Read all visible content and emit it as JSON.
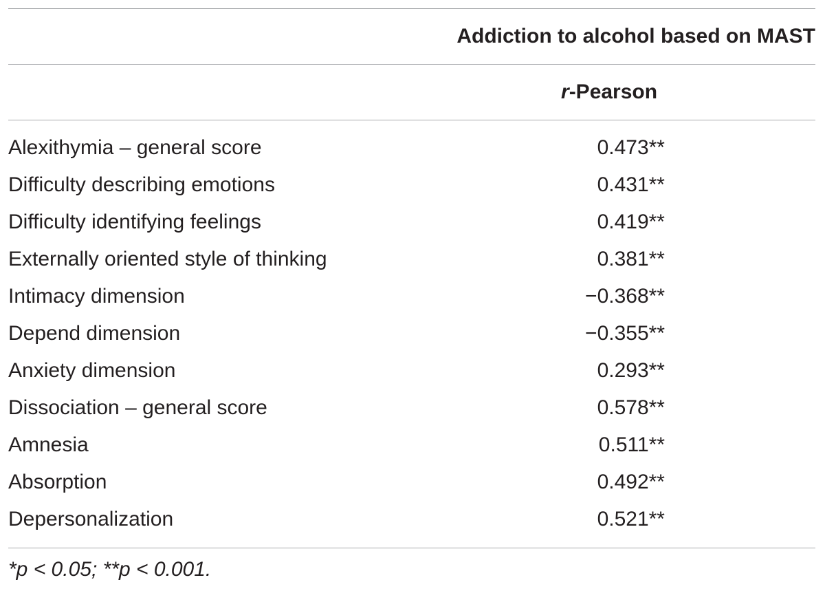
{
  "table": {
    "group_header": "Addiction to alcohol based on MAST",
    "stat_header": {
      "italic_part": "r",
      "rest": "-Pearson"
    },
    "rows": [
      {
        "label": "Alexithymia – general score",
        "value": "0.473**"
      },
      {
        "label": "Difficulty describing emotions",
        "value": "0.431**"
      },
      {
        "label": "Difficulty identifying feelings",
        "value": "0.419**"
      },
      {
        "label": "Externally oriented style of thinking",
        "value": "0.381**"
      },
      {
        "label": "Intimacy dimension",
        "value": "−0.368**"
      },
      {
        "label": "Depend dimension",
        "value": "−0.355**"
      },
      {
        "label": "Anxiety dimension",
        "value": "0.293**"
      },
      {
        "label": "Dissociation – general score",
        "value": "0.578**"
      },
      {
        "label": "Amnesia",
        "value": "0.511**"
      },
      {
        "label": "Absorption",
        "value": "0.492**"
      },
      {
        "label": "Depersonalization",
        "value": "0.521**"
      }
    ],
    "footnote": "*p < 0.05; **p < 0.001."
  }
}
